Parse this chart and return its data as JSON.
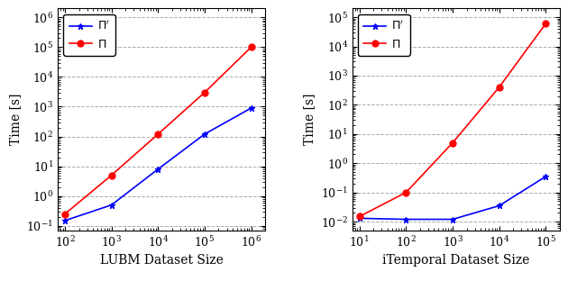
{
  "lubm": {
    "x": [
      100,
      1000,
      10000,
      100000,
      1000000
    ],
    "pi_prime": [
      0.15,
      0.5,
      8,
      120,
      900
    ],
    "pi": [
      0.25,
      5,
      120,
      3000,
      100000
    ],
    "xlabel": "LUBM Dataset Size",
    "ylabel": "Time [s]",
    "ylim": [
      0.07,
      2000000
    ],
    "xlim": [
      70,
      2000000
    ]
  },
  "itemporal": {
    "x": [
      10,
      100,
      1000,
      10000,
      100000
    ],
    "pi_prime": [
      0.013,
      0.012,
      0.012,
      0.035,
      0.35
    ],
    "pi": [
      0.015,
      0.1,
      5,
      400,
      60000
    ],
    "xlabel": "iTemporal Dataset Size",
    "ylabel": "Time [s]",
    "ylim": [
      0.005,
      200000
    ],
    "xlim": [
      7,
      200000
    ]
  },
  "pi_prime_label": "$\\Pi'$",
  "pi_label": "$\\Pi$",
  "pi_prime_color": "blue",
  "pi_color": "red",
  "marker_pi_prime": "*",
  "marker_pi": "o",
  "grid_color": "#aaaaaa",
  "bg_color": "white"
}
